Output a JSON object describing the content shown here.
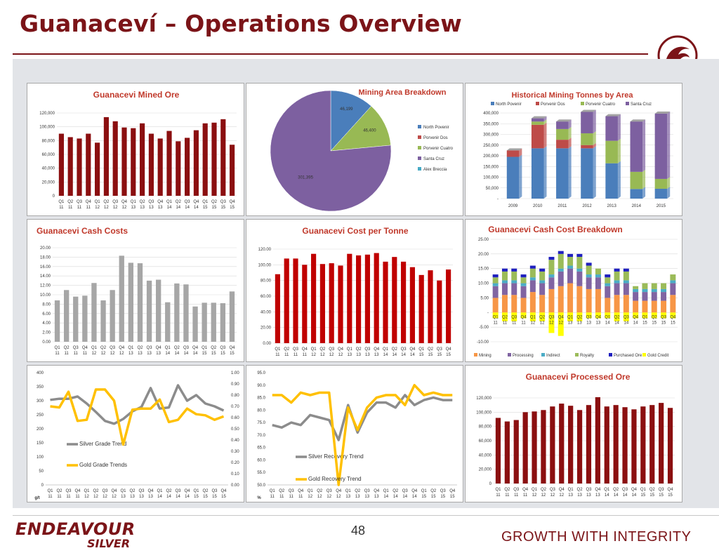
{
  "slide": {
    "title": "Guanaceví – Operations Overview",
    "page_number": "48",
    "brand_main": "ENDEAVOUR",
    "brand_sub": "SILVER",
    "tagline": "GROWTH WITH INTEGRITY",
    "accent_color": "#7b1418"
  },
  "quarters": [
    "Q1 11",
    "Q2 11",
    "Q3 11",
    "Q4 11",
    "Q1 12",
    "Q2 12",
    "Q3 12",
    "Q4 12",
    "Q1 13",
    "Q2 13",
    "Q3 13",
    "Q4 13",
    "Q1 14",
    "Q2 14",
    "Q3 14",
    "Q4 14",
    "Q1 15",
    "Q2 15",
    "Q3 15",
    "Q4 15"
  ],
  "chart_data": [
    {
      "id": "mined-ore",
      "type": "bar",
      "title": "Guanacevi Mined Ore",
      "color": "#8b0f10",
      "ylim": [
        0,
        120000
      ],
      "yticks": [
        "0",
        "20,000",
        "40,000",
        "60,000",
        "80,000",
        "100,000",
        "120,000"
      ],
      "categories_ref": "quarters",
      "values": [
        90000,
        85000,
        83000,
        90000,
        77000,
        114000,
        108000,
        99000,
        98000,
        105000,
        90000,
        83000,
        94000,
        79000,
        84000,
        95000,
        105000,
        106000,
        111000,
        74000
      ]
    },
    {
      "id": "mining-area",
      "type": "pie",
      "title": "Mining Area Breakdown",
      "slices": [
        {
          "name": "North Povenir",
          "value": 46199,
          "label": "46,199",
          "color": "#4a7ebb"
        },
        {
          "name": "Porvenir Dos",
          "value": 0,
          "label": "",
          "color": "#be4b48"
        },
        {
          "name": "Porvenir Cuatro",
          "value": 46400,
          "label": "46,400",
          "color": "#98b954"
        },
        {
          "name": "Santa Cruz",
          "value": 301395,
          "label": "301,395",
          "color": "#7d60a0"
        },
        {
          "name": "Alex Breccia",
          "value": 0,
          "label": "",
          "color": "#46aac5"
        }
      ]
    },
    {
      "id": "historical-tonnes",
      "type": "bar",
      "stacked": true,
      "title": "Historical Mining Tonnes by Area",
      "categories": [
        "2009",
        "2010",
        "2011",
        "2012",
        "2013",
        "2014",
        "2015"
      ],
      "ylim": [
        0,
        400000
      ],
      "yticks": [
        "-",
        "50,000",
        "100,000",
        "150,000",
        "200,000",
        "250,000",
        "300,000",
        "350,000",
        "400,000"
      ],
      "series": [
        {
          "name": "North Povenir",
          "color": "#4a7ebb",
          "values": [
            195000,
            235000,
            235000,
            235000,
            165000,
            45000,
            46000
          ]
        },
        {
          "name": "Porvenir Dos",
          "color": "#be4b48",
          "values": [
            30000,
            110000,
            40000,
            15000,
            0,
            0,
            0
          ]
        },
        {
          "name": "Porvenir Cuatro",
          "color": "#98b954",
          "values": [
            0,
            15000,
            50000,
            55000,
            105000,
            80000,
            46000
          ]
        },
        {
          "name": "Santa Cruz",
          "color": "#7d60a0",
          "values": [
            0,
            15000,
            35000,
            100000,
            115000,
            235000,
            305000
          ]
        }
      ]
    },
    {
      "id": "cash-costs",
      "type": "bar",
      "title": "Guanacevi Cash Costs",
      "color": "#a6a6a6",
      "ylim": [
        0,
        20
      ],
      "yticks": [
        "0.00",
        "2.00",
        "4.00",
        "6.00",
        "8.00",
        "10.00",
        "12.00",
        "14.00",
        "16.00",
        "18.00",
        "20.00"
      ],
      "categories_ref": "quarters",
      "values": [
        8.8,
        11.0,
        9.6,
        9.8,
        12.5,
        8.8,
        11.0,
        18.3,
        16.8,
        16.7,
        13.0,
        13.2,
        8.4,
        12.4,
        12.2,
        7.5,
        8.3,
        8.3,
        8.2,
        10.7
      ]
    },
    {
      "id": "cost-per-tonne",
      "type": "bar",
      "title": "Guanacevi Cost per Tonne",
      "color": "#c00000",
      "ylim": [
        0,
        120
      ],
      "yticks": [
        "0.00",
        "20.00",
        "40.00",
        "60.00",
        "80.00",
        "100.00",
        "120.00"
      ],
      "categories_ref": "quarters",
      "values": [
        88,
        108,
        108,
        100,
        114,
        101,
        102,
        99,
        114,
        112,
        113,
        115,
        104,
        110,
        104,
        97,
        87,
        93,
        80,
        94
      ]
    },
    {
      "id": "cash-cost-breakdown",
      "type": "bar",
      "stacked": true,
      "title": "Guanacevi Cash Cost Breakdown",
      "ylim": [
        -10,
        25
      ],
      "yticks": [
        "-10.00",
        "-5.00",
        "-",
        "5.00",
        "10.00",
        "15.00",
        "20.00",
        "25.00"
      ],
      "categories_ref": "quarters",
      "series": [
        {
          "name": "Mining",
          "color": "#f79646",
          "values": [
            5,
            6,
            6,
            5,
            7,
            6,
            8,
            9,
            10,
            9,
            8,
            8,
            5,
            6,
            6,
            4,
            4,
            4,
            4,
            6
          ]
        },
        {
          "name": "Processing",
          "color": "#8064a2",
          "values": [
            4,
            4,
            4,
            4,
            4,
            4,
            4,
            5,
            5,
            5,
            4,
            4,
            4,
            4,
            4,
            3,
            3,
            3,
            3,
            4
          ]
        },
        {
          "name": "Indirect",
          "color": "#4bacc6",
          "values": [
            1,
            1,
            1,
            1,
            1,
            1,
            1,
            1,
            1,
            1,
            1,
            1,
            1,
            1,
            1,
            1,
            1,
            1,
            1,
            1
          ]
        },
        {
          "name": "Royalty",
          "color": "#9bbb59",
          "values": [
            2,
            3,
            3,
            2,
            3,
            3,
            5,
            5,
            3,
            4,
            3,
            2,
            2,
            3,
            3,
            1,
            2,
            2,
            2,
            2
          ]
        },
        {
          "name": "Purchased Ore",
          "color": "#1f1fbf",
          "values": [
            1,
            1,
            1,
            1,
            1,
            1,
            1,
            1,
            1,
            1,
            1,
            0,
            1,
            1,
            1,
            0,
            0,
            0,
            0,
            0
          ]
        },
        {
          "name": "Gold Credit",
          "color": "#ffff00",
          "values": [
            -2,
            -3,
            -3,
            -2,
            -3,
            -3,
            -7,
            -8,
            -3,
            -3,
            -2,
            -2,
            -2,
            -3,
            -3,
            -2,
            -2,
            -2,
            -2,
            -2
          ]
        }
      ]
    },
    {
      "id": "grade-trend",
      "type": "line",
      "ylim": [
        0,
        400
      ],
      "ylim2": [
        0.0,
        1.0
      ],
      "yticks": [
        "0",
        "50",
        "100",
        "150",
        "200",
        "250",
        "300",
        "350",
        "400"
      ],
      "yticks2": [
        "0.00",
        "0.10",
        "0.20",
        "0.30",
        "0.40",
        "0.50",
        "0.60",
        "0.70",
        "0.80",
        "0.90",
        "1.00"
      ],
      "yunit": "g/t",
      "categories_ref": "quarters",
      "series": [
        {
          "name": "Silver Grade Trend",
          "color": "#8c8c8c",
          "axis": "left",
          "values": [
            303,
            307,
            307,
            315,
            290,
            260,
            228,
            218,
            235,
            262,
            278,
            345,
            272,
            276,
            355,
            300,
            320,
            290,
            280,
            265
          ]
        },
        {
          "name": "Gold Grade Trends",
          "color": "#ffc000",
          "axis": "right",
          "values": [
            0.7,
            0.69,
            0.83,
            0.57,
            0.58,
            0.85,
            0.85,
            0.75,
            0.36,
            0.67,
            0.68,
            0.68,
            0.76,
            0.56,
            0.58,
            0.68,
            0.63,
            0.62,
            0.58,
            0.61
          ]
        }
      ]
    },
    {
      "id": "recovery-trend",
      "type": "line",
      "ylim": [
        50,
        95
      ],
      "yticks": [
        "50.0",
        "55.0",
        "60.0",
        "65.0",
        "70.0",
        "75.0",
        "80.0",
        "85.0",
        "90.0",
        "95.0"
      ],
      "yunit": "%",
      "categories_ref": "quarters",
      "series": [
        {
          "name": "Silver Recovery Trend",
          "color": "#8c8c8c",
          "values": [
            74,
            73,
            75,
            74,
            78,
            77,
            76,
            68,
            82,
            71,
            79,
            83,
            83,
            81,
            86,
            82,
            84,
            85,
            84,
            84
          ]
        },
        {
          "name": "Gold Recovery Trend",
          "color": "#ffc000",
          "values": [
            86,
            86,
            83,
            87,
            86,
            87,
            87,
            50,
            81,
            72,
            81,
            85,
            86,
            86,
            82,
            90,
            86,
            87,
            86,
            86
          ]
        }
      ]
    },
    {
      "id": "processed-ore",
      "type": "bar",
      "title": "Guanacevi Processed Ore",
      "color": "#8b0f10",
      "ylim": [
        0,
        120000
      ],
      "yticks": [
        "0",
        "20,000",
        "40,000",
        "60,000",
        "80,000",
        "100,000",
        "120,000"
      ],
      "categories_ref": "quarters",
      "values": [
        92000,
        87000,
        89000,
        100000,
        101000,
        103000,
        108000,
        112000,
        109000,
        103000,
        110000,
        121000,
        108000,
        110000,
        107000,
        104000,
        108000,
        110000,
        113000,
        106000
      ]
    }
  ]
}
